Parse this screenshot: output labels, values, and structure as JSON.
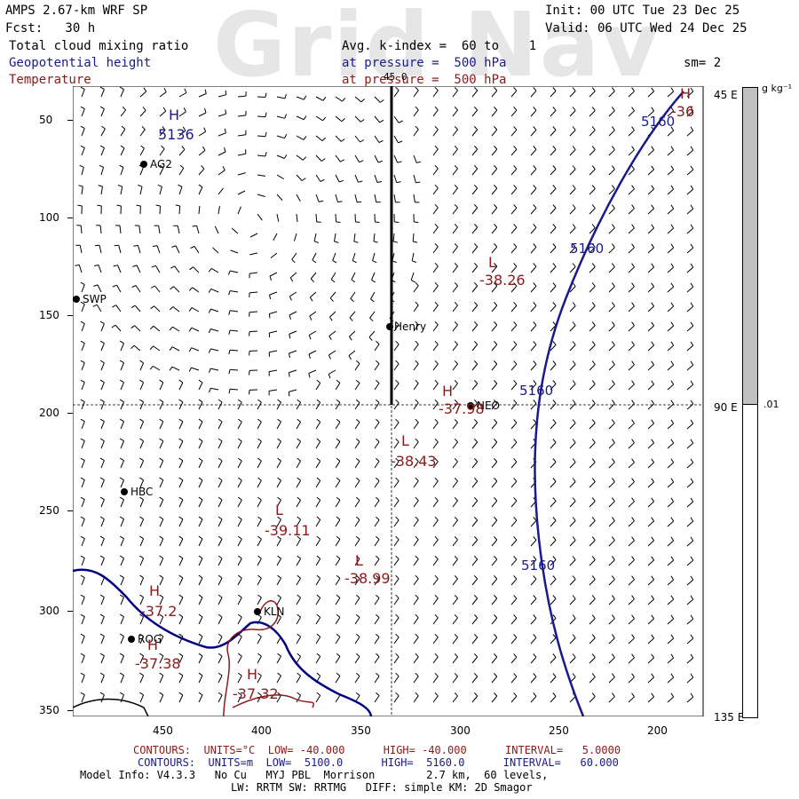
{
  "watermark": "Grid Nav",
  "header": {
    "model": "AMPS 2.67-km WRF SP",
    "init": "Init: 00 UTC Tue 23 Dec 25",
    "fcst": "Fcst:   30 h",
    "valid": "Valid: 06 UTC Wed 24 Dec 25",
    "field1": "Total cloud mixing ratio",
    "field2": "Geopotential height",
    "field3": "Temperature",
    "kindex": "Avg. k-index =  60 to    1",
    "pressure1": "at pressure =  500 hPa",
    "pressure2": "at pressure =  500 hPa",
    "sm": "sm= 2"
  },
  "axes": {
    "y_ticks": [
      "50",
      "100",
      "150",
      "200",
      "250",
      "300",
      "350"
    ],
    "x_ticks": [
      "450",
      "400",
      "350",
      "300",
      "250",
      "200"
    ],
    "right_labels": [
      "45 E",
      "90 E",
      "135 E"
    ],
    "top_label": "45 0"
  },
  "colorbar": {
    "unit": "g kg⁻¹",
    "label": ".01",
    "filled_color": "#c0c0c0",
    "empty_color": "#ffffff"
  },
  "stations": [
    "AG2",
    "SWP",
    "Henry",
    "NEO",
    "HBC",
    "KLN",
    "ROG"
  ],
  "height_labels": [
    "5136",
    "5160",
    "5160",
    "5160",
    "5160"
  ],
  "highs_lows": [
    {
      "sym": "H",
      "val": "5136",
      "color": "#1a1a8c"
    },
    {
      "sym": "L",
      "val": "-38.26",
      "color": "#8b1a1a"
    },
    {
      "sym": "H",
      "val": "-37.98",
      "color": "#8b1a1a"
    },
    {
      "sym": "L",
      "val": "-38.43",
      "color": "#8b1a1a"
    },
    {
      "sym": "L",
      "val": "-39.11",
      "color": "#8b1a1a"
    },
    {
      "sym": "L",
      "val": "-38.99",
      "color": "#8b1a1a"
    },
    {
      "sym": "H",
      "val": "-37.2",
      "color": "#8b1a1a"
    },
    {
      "sym": "H",
      "val": "-37.38",
      "color": "#8b1a1a"
    },
    {
      "sym": "H",
      "val": "-37.32",
      "color": "#8b1a1a"
    },
    {
      "sym": "H",
      "val": "-36",
      "color": "#8b1a1a"
    }
  ],
  "footer": {
    "temp_contours": "CONTOURS:  UNITS=°C  LOW= -40.000      HIGH= -40.000      INTERVAL=   5.0000",
    "hgt_contours": "CONTOURS:  UNITS=m  LOW=  5100.0      HIGH=  5160.0      INTERVAL=   60.000",
    "model_info": "Model Info: V4.3.3   No Cu   MYJ PBL  Morrison        2.7 km,  60 levels,",
    "physics": "LW: RRTM SW: RRTMG   DIFF: simple KM: 2D Smagor"
  },
  "colors": {
    "temperature": "#8b1a1a",
    "height": "#1a1a8c",
    "coast": "#000080"
  }
}
